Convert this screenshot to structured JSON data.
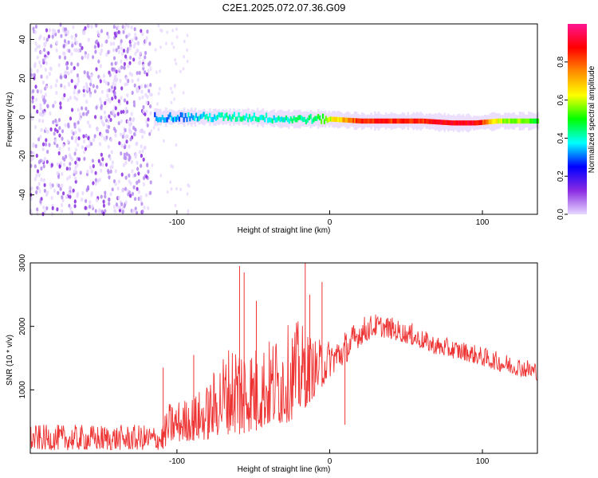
{
  "title": "C2E1.2025.072.07.36.G09",
  "chart_data": [
    {
      "type": "heatmap",
      "title": "C2E1.2025.072.07.36.G09",
      "xlabel": "Height of straight line (km)",
      "ylabel": "Frequency (Hz)",
      "xlim": [
        -196,
        136
      ],
      "ylim": [
        -50,
        48
      ],
      "x_ticks": [
        "-100",
        "0",
        "100"
      ],
      "y_ticks": [
        "-40",
        "-20",
        "0",
        "20",
        "40"
      ],
      "colorbar": {
        "label": "Normalized spectral amplitude",
        "range": [
          0,
          1
        ],
        "ticks": [
          "0.0",
          "0.2",
          "0.4",
          "0.6",
          "0.8"
        ],
        "colormap": [
          "#e8d8ff",
          "#8a2be2",
          "#0000ff",
          "#00ffff",
          "#00ff00",
          "#ffff00",
          "#ff8c00",
          "#ff0000",
          "#ff1493"
        ]
      },
      "ridge": [
        {
          "x": -115,
          "freq": 0,
          "amp": 0.3
        },
        {
          "x": -90,
          "freq": 0,
          "amp": 0.35
        },
        {
          "x": -70,
          "freq": 0,
          "amp": 0.4
        },
        {
          "x": -50,
          "freq": 0,
          "amp": 0.4
        },
        {
          "x": -30,
          "freq": -1,
          "amp": 0.4
        },
        {
          "x": -10,
          "freq": -1,
          "amp": 0.45
        },
        {
          "x": 0,
          "freq": -1,
          "amp": 0.6
        },
        {
          "x": 20,
          "freq": -2,
          "amp": 0.85
        },
        {
          "x": 60,
          "freq": -2,
          "amp": 0.85
        },
        {
          "x": 80,
          "freq": -3,
          "amp": 0.9
        },
        {
          "x": 95,
          "freq": -3,
          "amp": 0.9
        },
        {
          "x": 110,
          "freq": -2,
          "amp": 0.6
        },
        {
          "x": 136,
          "freq": -2,
          "amp": 0.5
        }
      ],
      "noise_region_x": [
        -196,
        -117
      ]
    },
    {
      "type": "line",
      "xlabel": "Height of straight line (km)",
      "ylabel": "SNR (10 * v/v)",
      "xlim": [
        -196,
        136
      ],
      "ylim": [
        0,
        3000
      ],
      "x_ticks": [
        "-100",
        "0",
        "100"
      ],
      "y_ticks": [
        "1000",
        "2000",
        "3000"
      ],
      "color": "#ee3333",
      "envelope": [
        {
          "x": -196,
          "low": 50,
          "high": 450
        },
        {
          "x": -160,
          "low": 50,
          "high": 450
        },
        {
          "x": -110,
          "low": 50,
          "high": 450
        },
        {
          "x": -105,
          "low": 150,
          "high": 800
        },
        {
          "x": -90,
          "low": 200,
          "high": 900
        },
        {
          "x": -80,
          "low": 200,
          "high": 1100
        },
        {
          "x": -70,
          "low": 300,
          "high": 1600
        },
        {
          "x": -60,
          "low": 300,
          "high": 1900
        },
        {
          "x": -50,
          "low": 350,
          "high": 1700
        },
        {
          "x": -40,
          "low": 400,
          "high": 1800
        },
        {
          "x": -30,
          "low": 450,
          "high": 2000
        },
        {
          "x": -20,
          "low": 600,
          "high": 2100
        },
        {
          "x": -10,
          "low": 900,
          "high": 1800
        },
        {
          "x": 0,
          "low": 1200,
          "high": 1800
        },
        {
          "x": 10,
          "low": 1400,
          "high": 1900
        },
        {
          "x": 20,
          "low": 1700,
          "high": 2150
        },
        {
          "x": 30,
          "low": 1850,
          "high": 2200
        },
        {
          "x": 40,
          "low": 1800,
          "high": 2150
        },
        {
          "x": 55,
          "low": 1700,
          "high": 2000
        },
        {
          "x": 70,
          "low": 1550,
          "high": 1850
        },
        {
          "x": 90,
          "low": 1450,
          "high": 1750
        },
        {
          "x": 110,
          "low": 1300,
          "high": 1600
        },
        {
          "x": 136,
          "low": 1150,
          "high": 1450
        }
      ],
      "spikes": [
        {
          "x": -109,
          "y": 1350
        },
        {
          "x": -89,
          "y": 1550
        },
        {
          "x": -59,
          "y": 2950
        },
        {
          "x": -56,
          "y": 2850
        },
        {
          "x": -48,
          "y": 2400
        },
        {
          "x": -16,
          "y": 3000
        },
        {
          "x": -13,
          "y": 2500
        },
        {
          "x": -5,
          "y": 2700
        },
        {
          "x": 54,
          "y": 2050
        }
      ],
      "dips": [
        {
          "x": 10,
          "y": 450
        }
      ]
    }
  ]
}
